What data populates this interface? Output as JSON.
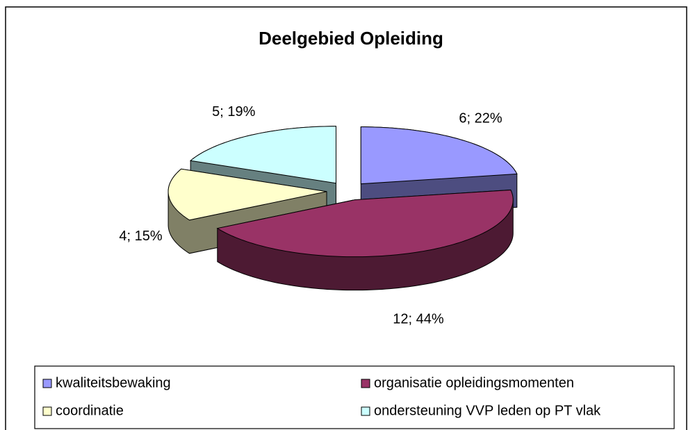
{
  "chart_data": {
    "type": "pie",
    "title": "Deelgebied Opleiding",
    "categories": [
      "kwaliteitsbewaking",
      "organisatie opleidingsmomenten",
      "coordinatie",
      "ondersteuning VVP leden op PT vlak"
    ],
    "values": [
      6,
      12,
      4,
      5
    ],
    "value_labels": [
      "6; 22%",
      "12; 44%",
      "4; 15%",
      "5; 19%"
    ],
    "colors": [
      "#9999ff",
      "#993366",
      "#ffffcc",
      "#ccffff"
    ],
    "legend": "bottom"
  }
}
